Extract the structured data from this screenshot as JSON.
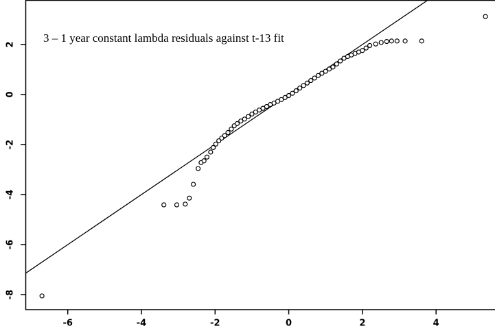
{
  "chart_data": {
    "type": "scatter",
    "title": "3 – 1 year constant lambda residuals against t-13 fit",
    "x": [
      -6.7,
      -3.39,
      -3.04,
      -2.81,
      -2.7,
      -2.59,
      -2.46,
      -2.38,
      -2.3,
      -2.22,
      -2.12,
      -2.05,
      -1.98,
      -1.9,
      -1.82,
      -1.74,
      -1.65,
      -1.56,
      -1.48,
      -1.4,
      -1.3,
      -1.2,
      -1.1,
      -1.0,
      -0.9,
      -0.8,
      -0.7,
      -0.6,
      -0.5,
      -0.4,
      -0.3,
      -0.2,
      -0.1,
      0.0,
      0.1,
      0.2,
      0.3,
      0.4,
      0.5,
      0.6,
      0.7,
      0.8,
      0.9,
      1.0,
      1.1,
      1.2,
      1.3,
      1.4,
      1.5,
      1.6,
      1.7,
      1.8,
      1.9,
      2.0,
      2.1,
      2.2,
      2.36,
      2.51,
      2.66,
      2.79,
      2.94,
      3.16,
      3.61,
      5.34
    ],
    "values": [
      -8.05,
      -4.41,
      -4.41,
      -4.38,
      -4.14,
      -3.59,
      -2.96,
      -2.72,
      -2.65,
      -2.5,
      -2.3,
      -2.12,
      -1.98,
      -1.85,
      -1.74,
      -1.64,
      -1.52,
      -1.38,
      -1.25,
      -1.16,
      -1.06,
      -0.98,
      -0.88,
      -0.78,
      -0.7,
      -0.62,
      -0.55,
      -0.48,
      -0.4,
      -0.34,
      -0.27,
      -0.2,
      -0.12,
      -0.04,
      0.05,
      0.15,
      0.26,
      0.36,
      0.46,
      0.56,
      0.66,
      0.76,
      0.85,
      0.93,
      1.02,
      1.1,
      1.22,
      1.34,
      1.45,
      1.52,
      1.58,
      1.64,
      1.7,
      1.76,
      1.86,
      1.96,
      2.02,
      2.08,
      2.12,
      2.14,
      2.14,
      2.14,
      2.14,
      3.12
    ],
    "reference_line": {
      "slope": 1,
      "intercept": 0
    },
    "color": "#000000",
    "xlim": [
      -7.15,
      5.6
    ],
    "ylim": [
      -8.6,
      3.78
    ],
    "xticks": [
      -6,
      -4,
      -2,
      0,
      2,
      4
    ],
    "yticks": [
      -8,
      -6,
      -4,
      -2,
      0,
      2
    ]
  }
}
